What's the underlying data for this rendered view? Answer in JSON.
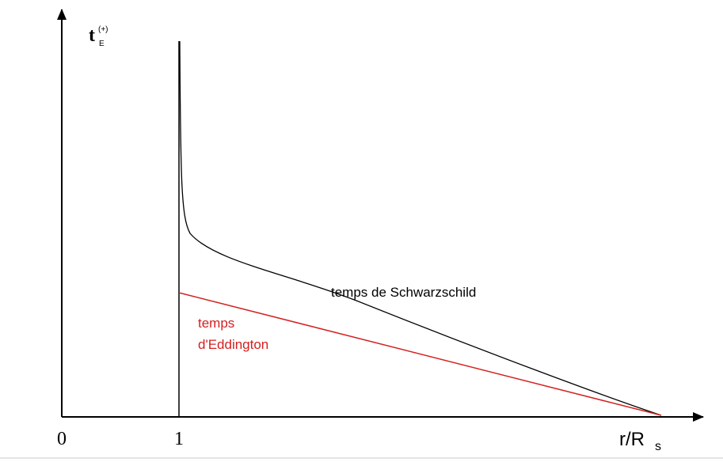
{
  "axes": {
    "y_label": {
      "main": "t",
      "sup": "(+)",
      "sub": "E"
    },
    "x_label": {
      "main": "r/R",
      "sub": "s"
    },
    "x_ticks": [
      "0",
      "1"
    ]
  },
  "curves": [
    {
      "label": "temps de Schwarzschild"
    },
    {
      "label_lines": [
        "temps",
        "d'Eddington"
      ]
    }
  ]
}
